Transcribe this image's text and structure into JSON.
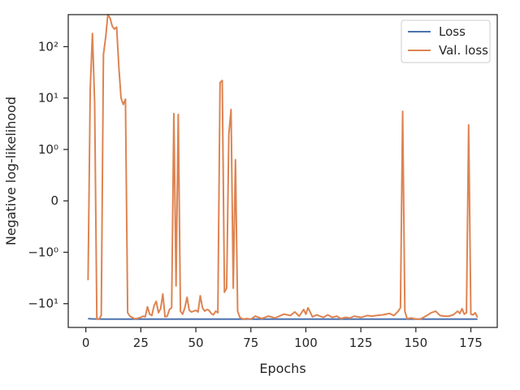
{
  "chart_data": {
    "type": "line",
    "title": "",
    "xlabel": "Epochs",
    "ylabel": "Negative log-likelihood",
    "yscale": "symlog",
    "xlim": [
      -8,
      187
    ],
    "ylim": [
      -29,
      420
    ],
    "grid": false,
    "legend_position": "top-right",
    "x_ticks": [
      0,
      25,
      50,
      75,
      100,
      125,
      150,
      175
    ],
    "x_tick_labels": [
      "0",
      "25",
      "50",
      "75",
      "100",
      "125",
      "150",
      "175"
    ],
    "y_ticks": [
      100,
      10,
      1,
      0,
      -1,
      -10
    ],
    "y_tick_labels": [
      "10²",
      "10¹",
      "10⁰",
      "0",
      "−10⁰",
      "−10¹"
    ],
    "series": [
      {
        "name": "Loss",
        "color": "#4c72b0",
        "x": [
          1,
          2,
          3,
          5,
          10,
          20,
          40,
          60,
          80,
          100,
          120,
          140,
          160,
          178
        ],
        "y": [
          -19.5,
          -19.7,
          -19.8,
          -19.9,
          -20.0,
          -20.0,
          -20.0,
          -20.0,
          -20.0,
          -20.0,
          -20.0,
          -20.0,
          -20.0,
          -20.0
        ]
      },
      {
        "name": "Val. loss",
        "color": "#dd8452",
        "x": [
          1,
          2,
          3,
          4,
          5,
          6,
          7,
          8,
          9,
          10,
          11,
          12,
          13,
          14,
          15,
          16,
          17,
          18,
          19,
          20,
          21,
          22,
          23,
          24,
          25,
          26,
          27,
          28,
          29,
          30,
          31,
          32,
          33,
          34,
          35,
          36,
          37,
          38,
          39,
          40,
          41,
          42,
          43,
          44,
          45,
          46,
          47,
          48,
          49,
          50,
          51,
          52,
          53,
          54,
          55,
          56,
          57,
          58,
          59,
          60,
          61,
          62,
          63,
          64,
          65,
          66,
          67,
          68,
          69,
          70,
          71,
          72,
          73,
          75,
          77,
          80,
          83,
          86,
          90,
          93,
          95,
          97,
          99,
          100,
          101,
          103,
          105,
          108,
          110,
          112,
          114,
          116,
          118,
          120,
          122,
          125,
          128,
          130,
          132,
          135,
          138,
          140,
          142,
          143,
          144,
          145,
          146,
          148,
          150,
          152,
          155,
          157,
          159,
          161,
          163,
          165,
          167,
          169,
          170,
          171,
          172,
          173,
          174,
          175,
          176,
          177,
          178
        ],
        "y": [
          -3.5,
          15,
          180,
          8,
          -20,
          -20,
          -17,
          70,
          150,
          420,
          360,
          250,
          220,
          240,
          40,
          10,
          7.5,
          9.5,
          -15,
          -17.5,
          -18.5,
          -19.5,
          -19.5,
          -19,
          -18.5,
          -17.5,
          -18,
          -11.5,
          -16,
          -17,
          -11,
          -9,
          -15,
          -12.5,
          -6.5,
          -18,
          -17.5,
          -13,
          -12,
          5,
          -4.5,
          4.8,
          -14,
          -16,
          -12,
          -7.5,
          -13.5,
          -14.5,
          -14,
          -13.5,
          -14.5,
          -7,
          -12,
          -14,
          -13,
          -13.5,
          -15.5,
          -16.5,
          -14,
          -15,
          20,
          22,
          -6,
          -5,
          2,
          6,
          -5,
          0.8,
          -14,
          -18.5,
          -19.5,
          -20,
          -19.5,
          -20,
          -17.5,
          -19.5,
          -17.5,
          -19,
          -16,
          -17,
          -14.5,
          -17.5,
          -13,
          -16,
          -12,
          -18,
          -16.5,
          -18.5,
          -16.5,
          -18.5,
          -17.5,
          -19.5,
          -18.5,
          -19,
          -17.5,
          -18.5,
          -17,
          -17.5,
          -17,
          -16.5,
          -15.5,
          -17,
          -14,
          -12,
          5.5,
          -14,
          -19.5,
          -19,
          -20,
          -20,
          -17,
          -15,
          -14,
          -17,
          -17.5,
          -17.5,
          -16.5,
          -14,
          -15.5,
          -12.5,
          -16,
          -15,
          3,
          -16,
          -16.5,
          -15,
          -18.5
        ]
      }
    ]
  }
}
